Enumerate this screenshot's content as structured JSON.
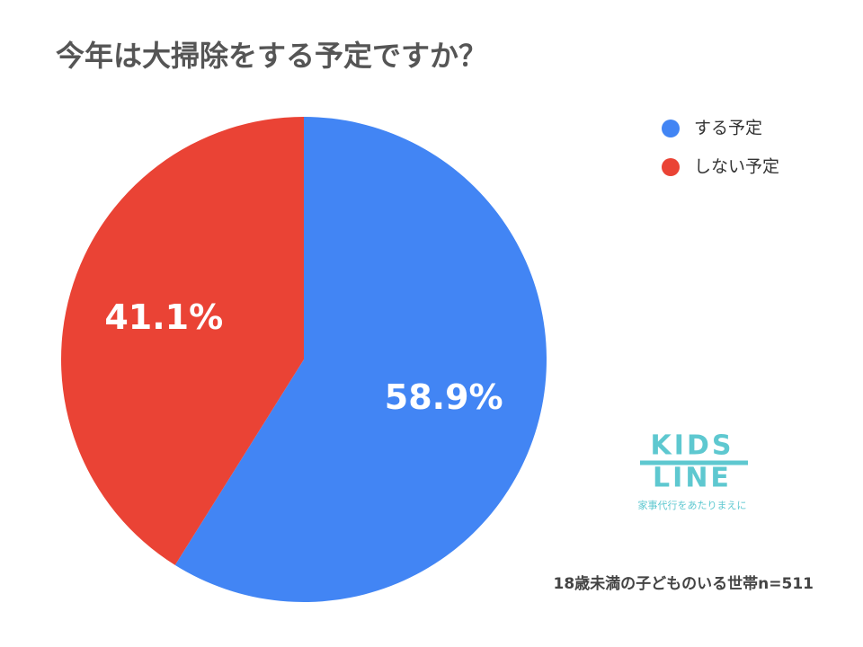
{
  "chart_data": {
    "type": "pie",
    "title": "今年は大掃除をする予定ですか？",
    "categories": [
      "する予定",
      "しない予定"
    ],
    "values": [
      58.9,
      41.1
    ],
    "value_labels": [
      "58.9%",
      "41.1%"
    ],
    "colors": [
      "#4285f4",
      "#ea4335"
    ],
    "legend": "top-right",
    "annotations": [
      "18歳未満の子どものいる世帯n=511",
      "KIDS",
      "LINE",
      "家事代行をあたりまえに"
    ]
  }
}
